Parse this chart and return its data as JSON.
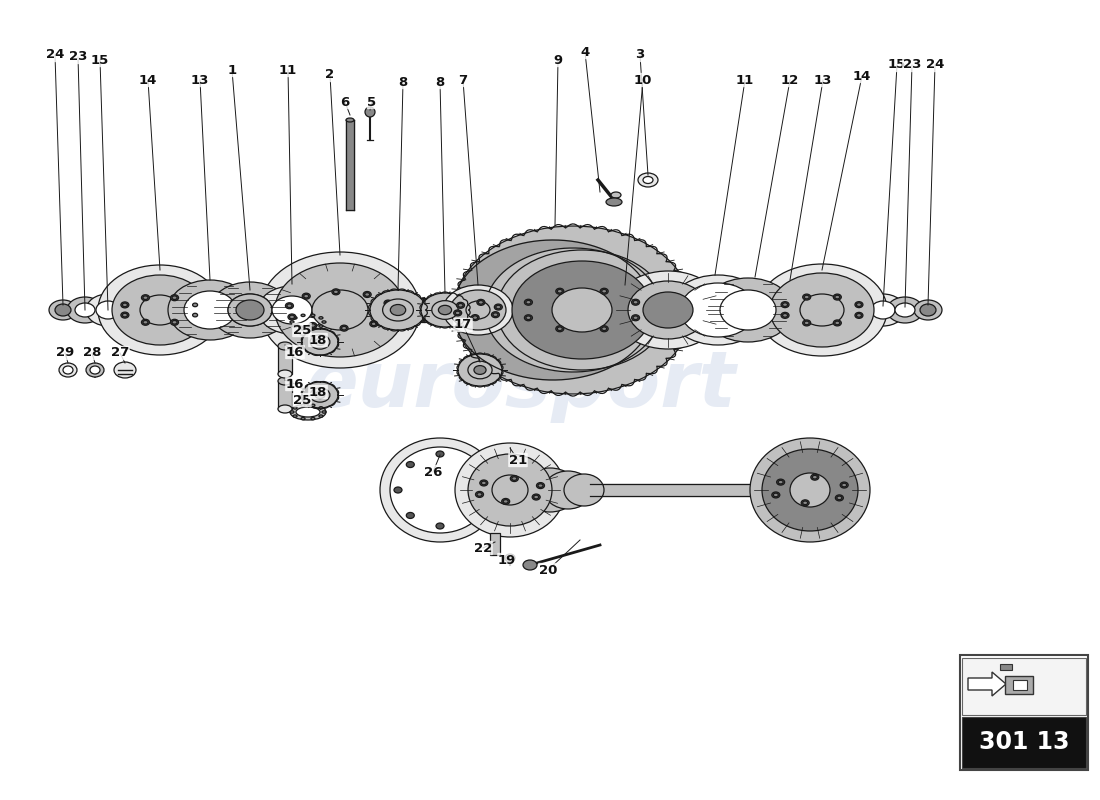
{
  "bg_color": "#ffffff",
  "line_color": "#1a1a1a",
  "fill_light": "#e8e8e8",
  "fill_med": "#c0c0c0",
  "fill_dark": "#888888",
  "fill_verydark": "#555555",
  "watermark_text": "eurosport",
  "watermark_color": "#c8d4e8",
  "watermark_alpha": 0.45,
  "page_code": "301 13",
  "lw": 0.9,
  "lw_thick": 1.5,
  "lw_thin": 0.5,
  "label_fontsize": 9.5
}
